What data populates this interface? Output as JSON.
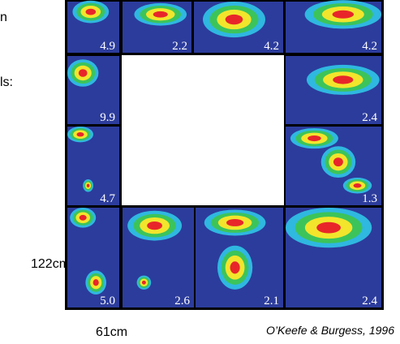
{
  "left_text": [
    "n",
    "ls:"
  ],
  "height_label": "122cm",
  "width_label": "61cm",
  "citation": "O’Keefe & Burgess, 1996",
  "panels": [
    {
      "rate": "4.9"
    },
    {
      "rate": "2.2"
    },
    {
      "rate": "4.2"
    },
    {
      "rate": "4.2"
    },
    {
      "rate": "9.9"
    },
    {
      "rate": "2.4"
    },
    {
      "rate": "4.7"
    },
    {
      "rate": "1.3"
    },
    {
      "rate": "5.0"
    },
    {
      "rate": "2.6"
    },
    {
      "rate": "2.1"
    },
    {
      "rate": "2.4"
    }
  ]
}
